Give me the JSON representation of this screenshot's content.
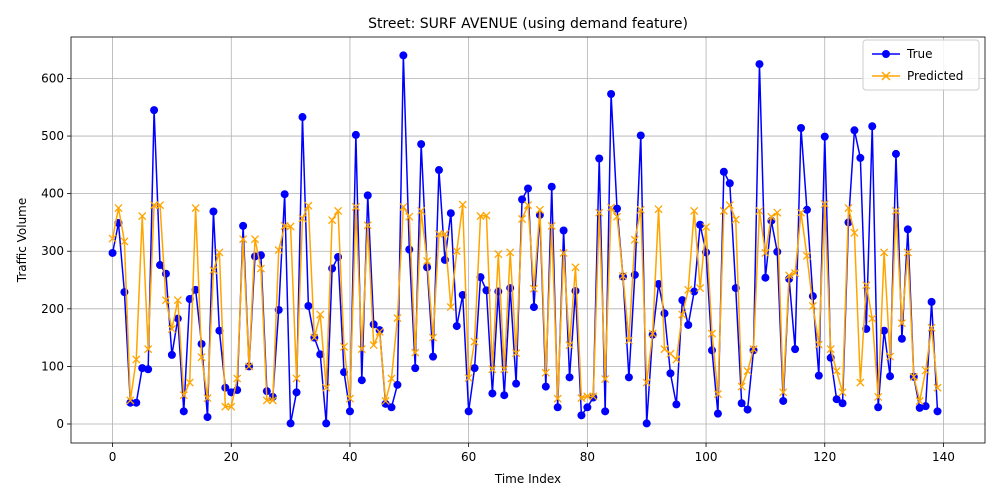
{
  "chart_data": {
    "type": "line",
    "title": "Street: SURF AVENUE (using demand feature)",
    "xlabel": "Time Index",
    "ylabel": "Traffic Volume",
    "xlim": [
      -7,
      147
    ],
    "ylim": [
      -33,
      672
    ],
    "xticks": [
      0,
      20,
      40,
      60,
      80,
      100,
      120,
      140
    ],
    "yticks": [
      0,
      100,
      200,
      300,
      400,
      500,
      600
    ],
    "grid": true,
    "legend_position": "top-right",
    "x": [
      0,
      1,
      2,
      3,
      4,
      5,
      6,
      7,
      8,
      9,
      10,
      11,
      12,
      13,
      14,
      15,
      16,
      17,
      18,
      19,
      20,
      21,
      22,
      23,
      24,
      25,
      26,
      27,
      28,
      29,
      30,
      31,
      32,
      33,
      34,
      35,
      36,
      37,
      38,
      39,
      40,
      41,
      42,
      43,
      44,
      45,
      46,
      47,
      48,
      49,
      50,
      51,
      52,
      53,
      54,
      55,
      56,
      57,
      58,
      59,
      60,
      61,
      62,
      63,
      64,
      65,
      66,
      67,
      68,
      69,
      70,
      71,
      72,
      73,
      74,
      75,
      76,
      77,
      78,
      79,
      80,
      81,
      82,
      83,
      84,
      85,
      86,
      87,
      88,
      89,
      90,
      91,
      92,
      93,
      94,
      95,
      96,
      97,
      98,
      99,
      100,
      101,
      102,
      103,
      104,
      105,
      106,
      107,
      108,
      109,
      110,
      111,
      112,
      113,
      114,
      115,
      116,
      117,
      118,
      119,
      120,
      121,
      122,
      123,
      124,
      125,
      126,
      127,
      128,
      129,
      130,
      131,
      132,
      133,
      134,
      135,
      136,
      137,
      138,
      139
    ],
    "series": [
      {
        "name": "True",
        "color": "#0000ff",
        "marker": "circle",
        "values": [
          297,
          349,
          229,
          37,
          37,
          97,
          95,
          545,
          276,
          261,
          120,
          183,
          22,
          217,
          233,
          139,
          12,
          369,
          162,
          63,
          55,
          59,
          344,
          100,
          291,
          293,
          57,
          47,
          198,
          399,
          1,
          55,
          533,
          205,
          150,
          121,
          1,
          270,
          290,
          90,
          22,
          502,
          76,
          397,
          173,
          163,
          35,
          29,
          68,
          640,
          303,
          97,
          486,
          272,
          117,
          441,
          285,
          366,
          170,
          224,
          22,
          97,
          255,
          232,
          53,
          230,
          50,
          236,
          70,
          390,
          409,
          203,
          363,
          65,
          412,
          29,
          336,
          81,
          231,
          15,
          29,
          46,
          461,
          22,
          573,
          374,
          256,
          81,
          259,
          501,
          1,
          155,
          243,
          192,
          88,
          34,
          215,
          172,
          230,
          346,
          298,
          128,
          18,
          438,
          418,
          236,
          36,
          25,
          128,
          625,
          254,
          353,
          299,
          40,
          252,
          130,
          514,
          372,
          222,
          84,
          499,
          115,
          43,
          36,
          350,
          510,
          462,
          165,
          517,
          29,
          162,
          83,
          469,
          148,
          338,
          82,
          28,
          31,
          212,
          22
        ]
      },
      {
        "name": "Predicted",
        "color": "#ffa500",
        "marker": "x",
        "values": [
          322,
          375,
          317,
          41,
          112,
          361,
          130,
          380,
          380,
          215,
          165,
          215,
          50,
          72,
          375,
          116,
          45,
          267,
          298,
          30,
          30,
          79,
          321,
          100,
          321,
          270,
          41,
          41,
          302,
          344,
          343,
          79,
          357,
          379,
          150,
          190,
          63,
          354,
          370,
          134,
          44,
          377,
          130,
          345,
          137,
          160,
          40,
          79,
          184,
          377,
          360,
          124,
          370,
          283,
          150,
          330,
          330,
          203,
          300,
          381,
          80,
          143,
          361,
          362,
          95,
          295,
          95,
          298,
          123,
          356,
          380,
          235,
          372,
          89,
          344,
          44,
          297,
          137,
          272,
          45,
          48,
          48,
          367,
          78,
          376,
          360,
          257,
          145,
          320,
          372,
          72,
          157,
          373,
          130,
          122,
          112,
          190,
          233,
          370,
          236,
          342,
          157,
          52,
          370,
          380,
          355,
          65,
          92,
          130,
          370,
          297,
          360,
          367,
          55,
          258,
          262,
          367,
          292,
          205,
          138,
          382,
          130,
          92,
          55,
          375,
          332,
          72,
          241,
          183,
          47,
          298,
          117,
          370,
          175,
          298,
          82,
          40,
          93,
          167,
          63
        ]
      }
    ]
  }
}
